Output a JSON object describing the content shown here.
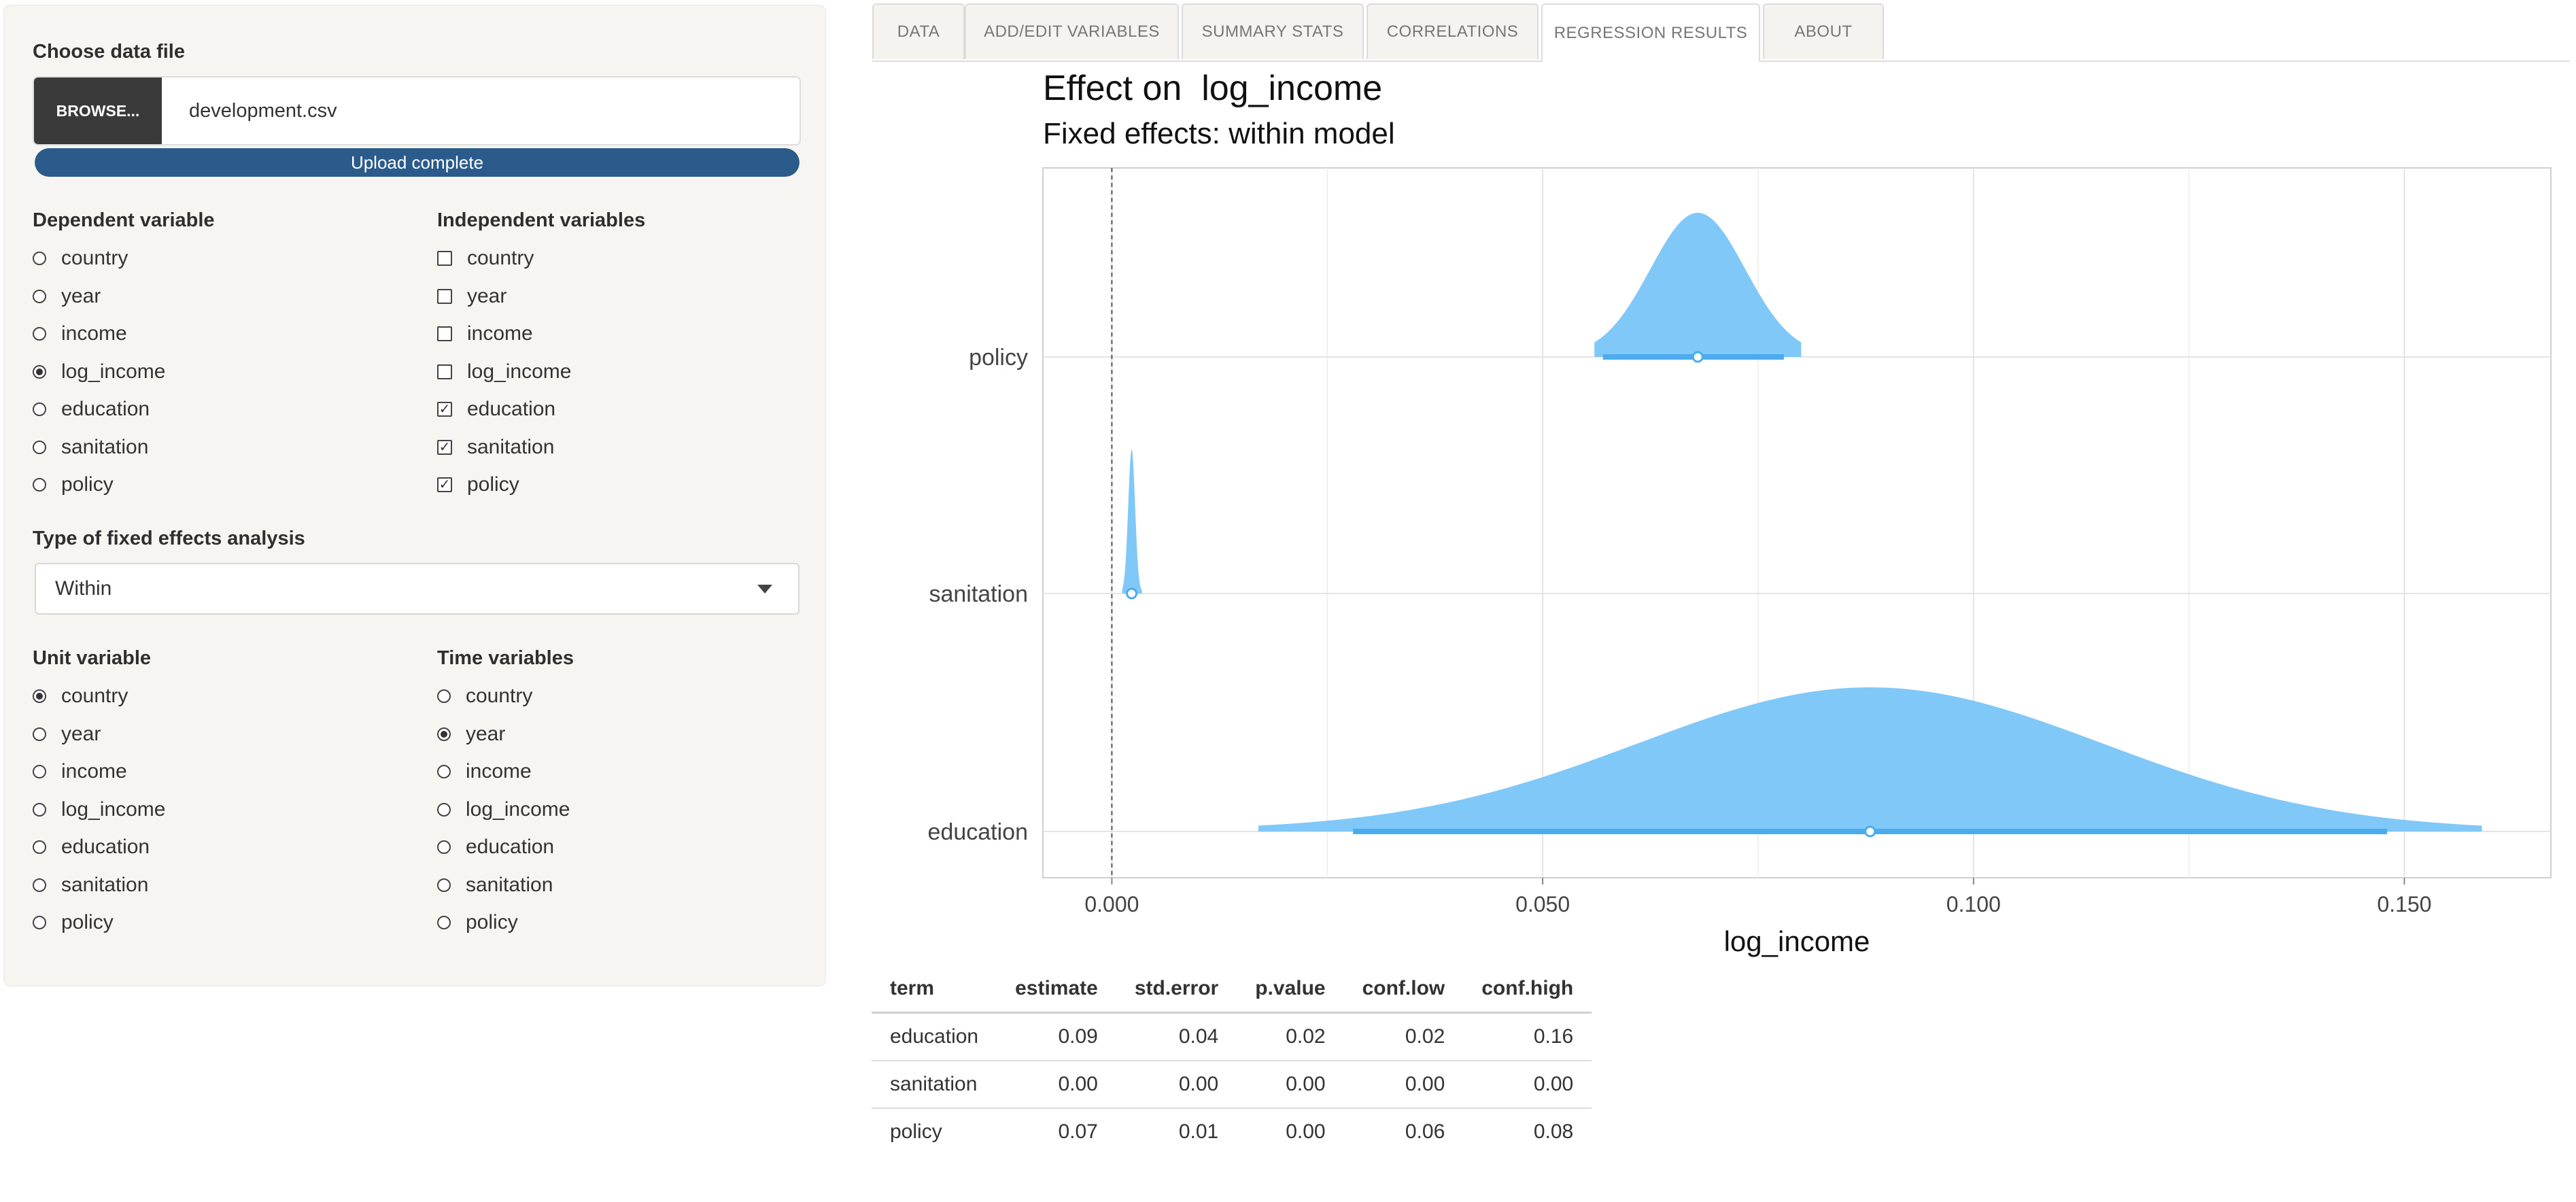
{
  "sidebar": {
    "file_label": "Choose data file",
    "browse_label": "BROWSE...",
    "file_name": "development.csv",
    "upload_status": "Upload complete",
    "upload_progress": 1.0,
    "dependent_label": "Dependent variable",
    "independent_label": "Independent variables",
    "fe_type_label": "Type of fixed effects analysis",
    "fe_type_value": "Within",
    "unit_label": "Unit variable",
    "time_label": "Time variables",
    "dependent_options": [
      {
        "label": "country",
        "selected": false
      },
      {
        "label": "year",
        "selected": false
      },
      {
        "label": "income",
        "selected": false
      },
      {
        "label": "log_income",
        "selected": true
      },
      {
        "label": "education",
        "selected": false
      },
      {
        "label": "sanitation",
        "selected": false
      },
      {
        "label": "policy",
        "selected": false
      }
    ],
    "independent_options": [
      {
        "label": "country",
        "checked": false
      },
      {
        "label": "year",
        "checked": false
      },
      {
        "label": "income",
        "checked": false
      },
      {
        "label": "log_income",
        "checked": false
      },
      {
        "label": "education",
        "checked": true
      },
      {
        "label": "sanitation",
        "checked": true
      },
      {
        "label": "policy",
        "checked": true
      }
    ],
    "unit_options": [
      {
        "label": "country",
        "selected": true
      },
      {
        "label": "year",
        "selected": false
      },
      {
        "label": "income",
        "selected": false
      },
      {
        "label": "log_income",
        "selected": false
      },
      {
        "label": "education",
        "selected": false
      },
      {
        "label": "sanitation",
        "selected": false
      },
      {
        "label": "policy",
        "selected": false
      }
    ],
    "time_options": [
      {
        "label": "country",
        "selected": false
      },
      {
        "label": "year",
        "selected": true
      },
      {
        "label": "income",
        "selected": false
      },
      {
        "label": "log_income",
        "selected": false
      },
      {
        "label": "education",
        "selected": false
      },
      {
        "label": "sanitation",
        "selected": false
      },
      {
        "label": "policy",
        "selected": false
      }
    ]
  },
  "tabs": [
    {
      "label": "DATA",
      "active": false
    },
    {
      "label": "ADD/EDIT VARIABLES",
      "active": false
    },
    {
      "label": "SUMMARY STATS",
      "active": false
    },
    {
      "label": "CORRELATIONS",
      "active": false
    },
    {
      "label": "REGRESSION RESULTS",
      "active": true
    },
    {
      "label": "ABOUT",
      "active": false
    }
  ],
  "colors": {
    "accent": "#2a5b8a",
    "violin_fill": "#80c8f8",
    "violin_line": "#4aacef"
  },
  "chart_data": {
    "type": "violin",
    "title": "Effect on  log_income",
    "subtitle": "Fixed effects: within model",
    "xlabel": "log_income",
    "ylabel": "",
    "xlim": [
      -0.008,
      0.167
    ],
    "xticks": [
      0.0,
      0.05,
      0.1,
      0.15
    ],
    "xtick_labels": [
      "0.000",
      "0.050",
      "0.100",
      "0.150"
    ],
    "reference_line": 0.0,
    "grid": true,
    "terms": [
      {
        "term": "policy",
        "estimate": 0.068,
        "lower": 0.057,
        "upper": 0.078,
        "tail_low": 0.056,
        "tail_high": 0.08,
        "sigma": 0.0055
      },
      {
        "term": "sanitation",
        "estimate": 0.0023,
        "lower": 0.0019,
        "upper": 0.0027,
        "tail_low": 0.0012,
        "tail_high": 0.0035,
        "sigma": 0.0004
      },
      {
        "term": "education",
        "estimate": 0.088,
        "lower": 0.028,
        "upper": 0.148,
        "tail_low": 0.017,
        "tail_high": 0.159,
        "sigma": 0.027
      }
    ]
  },
  "table": {
    "columns": [
      "term",
      "estimate",
      "std.error",
      "p.value",
      "conf.low",
      "conf.high"
    ],
    "rows": [
      [
        "education",
        "0.09",
        "0.04",
        "0.02",
        "0.02",
        "0.16"
      ],
      [
        "sanitation",
        "0.00",
        "0.00",
        "0.00",
        "0.00",
        "0.00"
      ],
      [
        "policy",
        "0.07",
        "0.01",
        "0.00",
        "0.06",
        "0.08"
      ]
    ]
  }
}
